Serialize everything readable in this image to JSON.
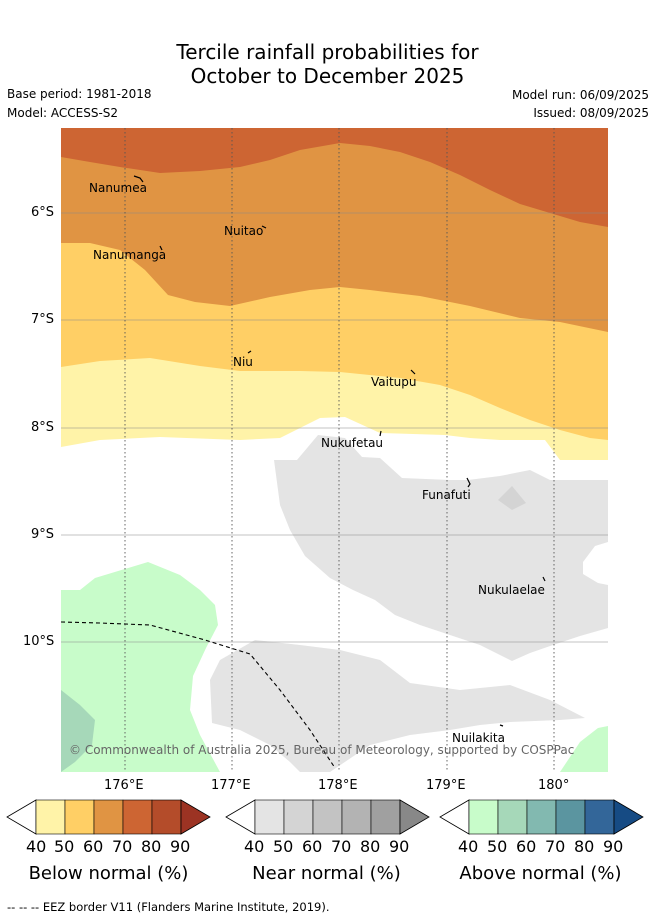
{
  "title": {
    "line1": "Tercile rainfall probabilities for",
    "line2": "October to December 2025"
  },
  "meta": {
    "base_period": "Base period: 1981-2018",
    "model": "Model: ACCESS-S2",
    "model_run": "Model run: 06/09/2025",
    "issued": "Issued: 08/09/2025"
  },
  "map": {
    "copyright": "© Commonwealth of Australia 2025, Bureau of Meteorology, supported by COSPPac",
    "lat_ticks": [
      "6°S",
      "7°S",
      "8°S",
      "9°S",
      "10°S"
    ],
    "lon_ticks": [
      "176°E",
      "177°E",
      "178°E",
      "179°E",
      "180°"
    ],
    "places": [
      {
        "name": "Nanumea"
      },
      {
        "name": "Nuitao"
      },
      {
        "name": "Nanumanga"
      },
      {
        "name": "Niu"
      },
      {
        "name": "Vaitupu"
      },
      {
        "name": "Nukufetau"
      },
      {
        "name": "Funafuti"
      },
      {
        "name": "Nukulaelae"
      },
      {
        "name": "Nuilakita"
      }
    ]
  },
  "legend": {
    "below": {
      "label": "Below normal (%)",
      "ticks": [
        "40",
        "50",
        "60",
        "70",
        "80",
        "90"
      ],
      "colors": [
        "#fff3a8",
        "#ffcf65",
        "#e09443",
        "#cd6533",
        "#b44c2a",
        "#9c3323"
      ]
    },
    "near": {
      "label": "Near normal (%)",
      "ticks": [
        "40",
        "50",
        "60",
        "70",
        "80",
        "90"
      ],
      "colors": [
        "#e4e4e4",
        "#d4d4d4",
        "#c3c3c3",
        "#b3b3b3",
        "#a0a0a0",
        "#888888"
      ]
    },
    "above": {
      "label": "Above normal (%)",
      "ticks": [
        "40",
        "50",
        "60",
        "70",
        "80",
        "90"
      ],
      "colors": [
        "#c8fcca",
        "#a6d8b9",
        "#82b9b0",
        "#5b95a0",
        "#336699",
        "#164b84"
      ]
    }
  },
  "footer": {
    "eez_note": "--  --  -- EEZ border V11 (Flanders Marine Institute, 2019)."
  }
}
